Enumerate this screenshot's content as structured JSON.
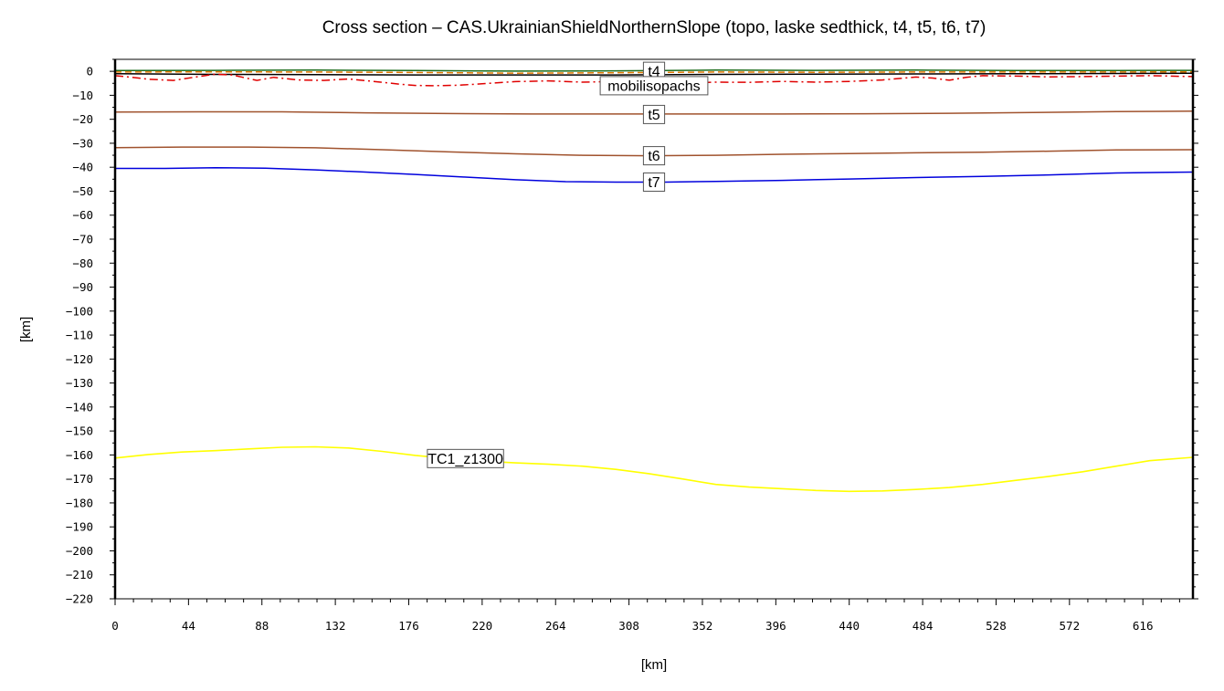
{
  "chart_data": {
    "type": "line",
    "title": "Cross section – CAS.UkrainianShieldNorthernSlope (topo, laske sedthick, t4, t5, t6, t7)",
    "xlabel": "[km]",
    "ylabel": "[km]",
    "xlim": [
      0,
      646
    ],
    "ylim": [
      -220,
      5
    ],
    "x_ticks": [
      0,
      44,
      88,
      132,
      176,
      220,
      264,
      308,
      352,
      396,
      440,
      484,
      528,
      572,
      616
    ],
    "y_ticks": [
      0,
      -10,
      -20,
      -30,
      -40,
      -50,
      -60,
      -70,
      -80,
      -90,
      -100,
      -110,
      -120,
      -130,
      -140,
      -150,
      -160,
      -170,
      -180,
      -190,
      -200,
      -210,
      -220
    ],
    "grid": false,
    "series": [
      {
        "name": "topo",
        "color": "#1a6b1a",
        "style": "solid",
        "x": [
          0,
          60,
          120,
          180,
          240,
          300,
          360,
          420,
          480,
          540,
          600,
          646
        ],
        "y": [
          0.3,
          0.4,
          0.5,
          0.3,
          0.1,
          0.2,
          0.5,
          0.4,
          0.5,
          0.3,
          0.3,
          0.4
        ]
      },
      {
        "name": "laske sedthick",
        "color": "#e07800",
        "style": "dashed",
        "x": [
          0,
          60,
          120,
          180,
          240,
          300,
          360,
          420,
          480,
          540,
          600,
          646
        ],
        "y": [
          -0.3,
          -0.2,
          -0.3,
          -0.5,
          -0.8,
          -0.6,
          -0.3,
          -0.4,
          -0.3,
          -0.3,
          -0.3,
          -0.2
        ]
      },
      {
        "name": "t4",
        "color": "#000000",
        "style": "solid",
        "x": [
          0,
          60,
          120,
          180,
          240,
          300,
          360,
          420,
          480,
          540,
          600,
          646
        ],
        "y": [
          -1,
          -1.3,
          -1.4,
          -1.5,
          -1.5,
          -1.5,
          -1.3,
          -1.2,
          -1.1,
          -1.0,
          -0.9,
          -0.8
        ]
      },
      {
        "name": "mobilisopachs",
        "color": "#e00000",
        "style": "dashdot",
        "x": [
          0,
          10,
          20,
          35,
          50,
          60,
          70,
          85,
          95,
          110,
          125,
          140,
          155,
          170,
          180,
          190,
          205,
          220,
          240,
          260,
          280,
          300,
          320,
          340,
          360,
          380,
          400,
          420,
          440,
          460,
          480,
          490,
          500,
          510,
          520,
          540,
          560,
          580,
          600,
          620,
          646
        ],
        "y": [
          -1.8,
          -2.5,
          -3.3,
          -3.8,
          -2.2,
          -1.2,
          -1.5,
          -3.8,
          -2.5,
          -3.6,
          -3.8,
          -3.2,
          -4.2,
          -5.3,
          -5.9,
          -6,
          -5.8,
          -5.2,
          -4.3,
          -4,
          -4.5,
          -4.2,
          -4.6,
          -5,
          -4.5,
          -4.6,
          -4.2,
          -4.5,
          -4.2,
          -3.6,
          -2.4,
          -2.8,
          -3.7,
          -2.5,
          -1.8,
          -2,
          -2.3,
          -2.2,
          -2,
          -1.8,
          -2.2
        ]
      },
      {
        "name": "t5",
        "color": "#a0522d",
        "style": "solid",
        "x": [
          0,
          50,
          100,
          150,
          200,
          250,
          300,
          350,
          400,
          450,
          500,
          550,
          600,
          646
        ],
        "y": [
          -17,
          -16.9,
          -16.9,
          -17.3,
          -17.6,
          -17.8,
          -17.8,
          -17.8,
          -17.8,
          -17.7,
          -17.5,
          -17.2,
          -16.8,
          -16.6
        ]
      },
      {
        "name": "t6",
        "color": "#a0522d",
        "style": "solid",
        "x": [
          0,
          40,
          80,
          120,
          160,
          200,
          240,
          280,
          320,
          360,
          400,
          440,
          480,
          520,
          560,
          600,
          646
        ],
        "y": [
          -31.8,
          -31.6,
          -31.6,
          -31.9,
          -32.7,
          -33.6,
          -34.4,
          -35,
          -35.2,
          -35,
          -34.6,
          -34.3,
          -34,
          -33.7,
          -33.3,
          -32.8,
          -32.7
        ]
      },
      {
        "name": "t7",
        "color": "#0000dd",
        "style": "solid",
        "x": [
          0,
          30,
          60,
          90,
          120,
          150,
          180,
          210,
          240,
          270,
          300,
          330,
          360,
          400,
          440,
          480,
          520,
          560,
          600,
          646
        ],
        "y": [
          -40.5,
          -40.5,
          -40.2,
          -40.4,
          -41.1,
          -42,
          -43,
          -44.1,
          -45.2,
          -46,
          -46.2,
          -46.2,
          -45.9,
          -45.5,
          -44.9,
          -44.3,
          -43.8,
          -43.2,
          -42.4,
          -42
        ]
      },
      {
        "name": "TC1_z1300",
        "color": "#ffff00",
        "style": "solid",
        "x": [
          0,
          20,
          40,
          60,
          80,
          100,
          120,
          140,
          160,
          180,
          200,
          220,
          240,
          260,
          280,
          300,
          320,
          340,
          360,
          380,
          400,
          420,
          440,
          460,
          480,
          500,
          520,
          540,
          560,
          580,
          600,
          620,
          646
        ],
        "y": [
          -161.3,
          -159.8,
          -158.8,
          -158.2,
          -157.5,
          -156.8,
          -156.6,
          -157.1,
          -158.5,
          -160.2,
          -161.5,
          -162.6,
          -163.3,
          -163.9,
          -164.7,
          -166,
          -167.8,
          -170,
          -172.3,
          -173.4,
          -174.1,
          -174.8,
          -175.2,
          -175,
          -174.4,
          -173.6,
          -172.3,
          -170.6,
          -168.9,
          -167,
          -164.7,
          -162.4,
          -161
        ]
      }
    ],
    "annotations": [
      {
        "text": "t4",
        "x": 323,
        "y": 0
      },
      {
        "text": "mobilisopachs",
        "x": 323,
        "y": -6
      },
      {
        "text": "t5",
        "x": 323,
        "y": -18
      },
      {
        "text": "t6",
        "x": 323,
        "y": -35.2
      },
      {
        "text": "t7",
        "x": 323,
        "y": -46.2
      },
      {
        "text": "TC1_z1300",
        "x": 210,
        "y": -161.5
      }
    ]
  }
}
